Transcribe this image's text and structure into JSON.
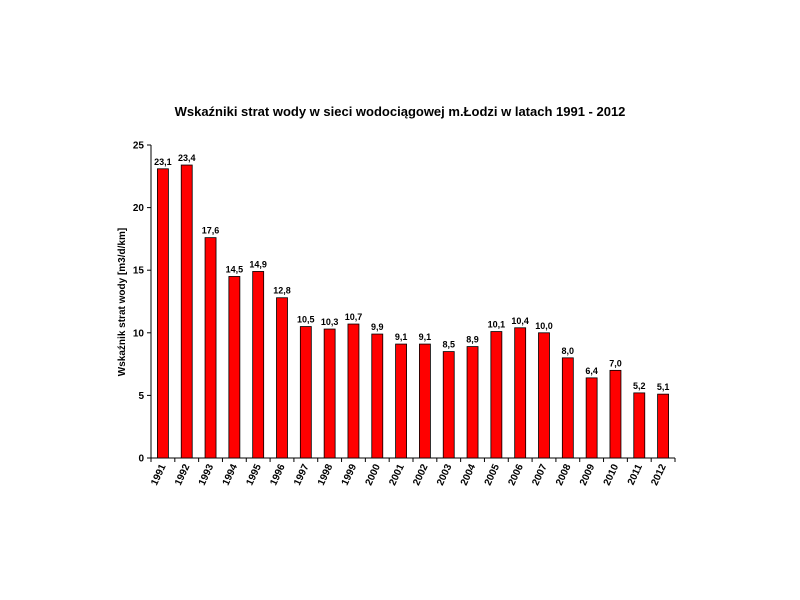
{
  "chart_data": {
    "type": "bar",
    "title": "Wskaźniki strat wody w sieci wodociągowej m.Łodzi w latach 1991 - 2012",
    "xlabel": "",
    "ylabel": "Wskaźnik strat wody [m3/d/km]",
    "ylim": [
      0,
      25
    ],
    "yticks": [
      0,
      5,
      10,
      15,
      20,
      25
    ],
    "grid": false,
    "legend": "none",
    "bar_color": "#ff0000",
    "bar_edge_color": "#000000",
    "categories": [
      "1991",
      "1992",
      "1993",
      "1994",
      "1995",
      "1996",
      "1997",
      "1998",
      "1999",
      "2000",
      "2001",
      "2002",
      "2003",
      "2004",
      "2005",
      "2006",
      "2007",
      "2008",
      "2009",
      "2010",
      "2011",
      "2012"
    ],
    "values": [
      23.1,
      23.4,
      17.6,
      14.5,
      14.9,
      12.8,
      10.5,
      10.3,
      10.7,
      9.9,
      9.1,
      9.1,
      8.5,
      8.9,
      10.1,
      10.4,
      10.0,
      8.0,
      6.4,
      7.0,
      5.2,
      5.1
    ],
    "data_labels": [
      "23,1",
      "23,4",
      "17,6",
      "14,5",
      "14,9",
      "12,8",
      "10,5",
      "10,3",
      "10,7",
      "9,9",
      "9,1",
      "9,1",
      "8,5",
      "8,9",
      "10,1",
      "10,4",
      "10,0",
      "8,0",
      "6,4",
      "7,0",
      "5,2",
      "5,1"
    ]
  }
}
